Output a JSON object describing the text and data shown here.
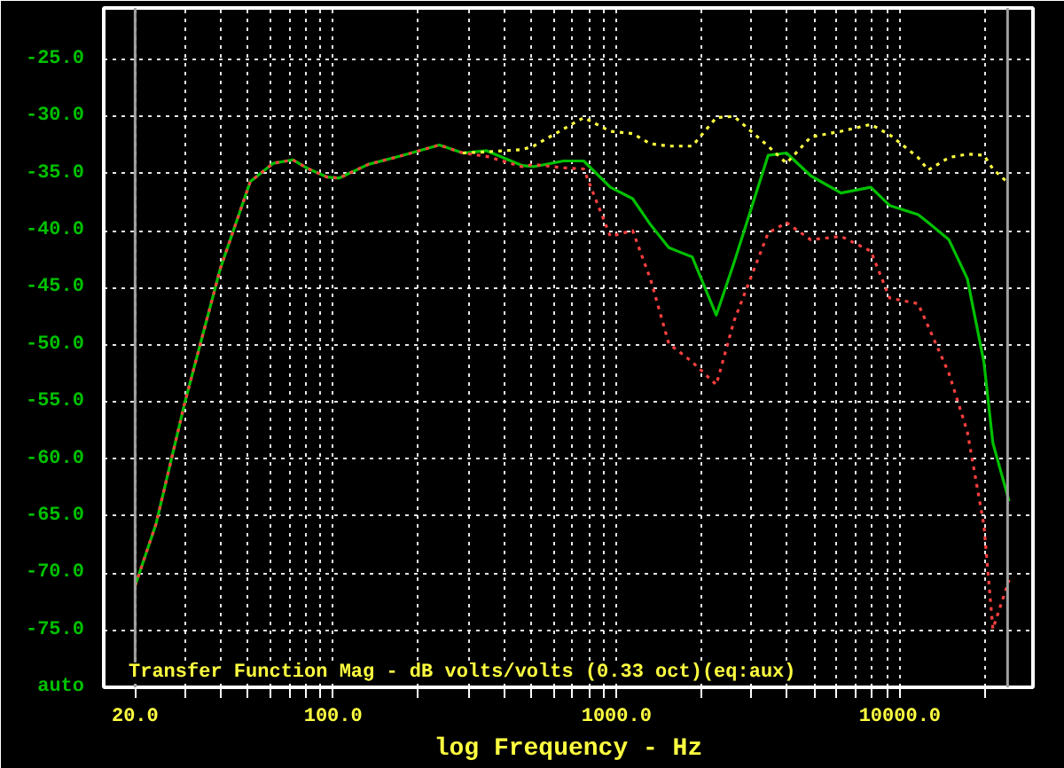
{
  "chart_data": {
    "type": "line",
    "xlabel": "log Frequency - Hz",
    "annotations": [
      "Transfer Function Mag - dB volts/volts (0.33 oct)(eq:aux)"
    ],
    "log": "x",
    "grid": true,
    "marker": "none",
    "xlim": [
      15.5,
      29500
    ],
    "ylim": [
      -80,
      -20.5
    ],
    "xticks": [
      {
        "value": 20,
        "label": "20.0"
      },
      {
        "value": 30,
        "label": null
      },
      {
        "value": 40,
        "label": null
      },
      {
        "value": 50,
        "label": null
      },
      {
        "value": 60,
        "label": null
      },
      {
        "value": 70,
        "label": null
      },
      {
        "value": 80,
        "label": null
      },
      {
        "value": 90,
        "label": null
      },
      {
        "value": 100,
        "label": "100.0"
      },
      {
        "value": 200,
        "label": null
      },
      {
        "value": 300,
        "label": null
      },
      {
        "value": 400,
        "label": null
      },
      {
        "value": 500,
        "label": null
      },
      {
        "value": 600,
        "label": null
      },
      {
        "value": 700,
        "label": null
      },
      {
        "value": 800,
        "label": null
      },
      {
        "value": 900,
        "label": null
      },
      {
        "value": 1000,
        "label": "1000.0"
      },
      {
        "value": 2000,
        "label": null
      },
      {
        "value": 3000,
        "label": null
      },
      {
        "value": 4000,
        "label": null
      },
      {
        "value": 5000,
        "label": null
      },
      {
        "value": 6000,
        "label": null
      },
      {
        "value": 7000,
        "label": null
      },
      {
        "value": 8000,
        "label": null
      },
      {
        "value": 9000,
        "label": null
      },
      {
        "value": 10000,
        "label": "10000.0"
      },
      {
        "value": 20000,
        "label": null
      }
    ],
    "yticks": [
      {
        "value": -25,
        "label": "-25.0"
      },
      {
        "value": -30,
        "label": "-30.0"
      },
      {
        "value": -35,
        "label": "-35.0"
      },
      {
        "value": -40,
        "label": "-40.0"
      },
      {
        "value": -45,
        "label": "-45.0"
      },
      {
        "value": -50,
        "label": "-50.0"
      },
      {
        "value": -55,
        "label": "-55.0"
      },
      {
        "value": -60,
        "label": "-60.0"
      },
      {
        "value": -65,
        "label": "-65.0"
      },
      {
        "value": -70,
        "label": "-70.0"
      },
      {
        "value": -75,
        "label": "-75.0"
      },
      {
        "value": -80,
        "label": "auto"
      }
    ],
    "ref_lines": [
      {
        "axis": "x",
        "value": 20,
        "color": "#a0a0a0"
      },
      {
        "axis": "x",
        "value": 24000,
        "color": "#a0a0a0"
      }
    ],
    "x": [
      20,
      23.7,
      30,
      40,
      51,
      61.5,
      72,
      82,
      95,
      105,
      133,
      177,
      237,
      287,
      348,
      465,
      509,
      650,
      766,
      951,
      1140,
      1320,
      1530,
      1850,
      2250,
      2600,
      3430,
      3980,
      4850,
      6200,
      7900,
      9200,
      11600,
      12600,
      14900,
      17300,
      19800,
      21300,
      24300
    ],
    "series": [
      {
        "color": "#00c000",
        "line_style": "solid",
        "values": [
          -71.1,
          -65.7,
          -55.0,
          -43.3,
          -35.7,
          -34.1,
          -33.8,
          -34.6,
          -35.3,
          -35.4,
          -34.2,
          -33.4,
          -32.5,
          -33.2,
          -33.0,
          -34.3,
          -34.4,
          -33.9,
          -33.9,
          -36.2,
          -37.2,
          -39.5,
          -41.5,
          -42.3,
          -47.4,
          -42.8,
          -33.4,
          -33.2,
          -35.2,
          -36.7,
          -36.2,
          -37.8,
          -38.6,
          -39.3,
          -40.8,
          -44.2,
          -51.5,
          -58.6,
          -63.7
        ]
      },
      {
        "color": "#ffff40",
        "line_style": "dotted",
        "values": [
          null,
          null,
          null,
          null,
          null,
          null,
          null,
          null,
          null,
          null,
          null,
          null,
          null,
          -33.2,
          -33.1,
          -32.9,
          -32.6,
          -31.1,
          -30.1,
          -31.3,
          -31.5,
          -32.4,
          -32.6,
          -32.6,
          -30.1,
          -30.0,
          -32.6,
          -34.1,
          -31.8,
          -31.3,
          -30.7,
          -31.6,
          -33.6,
          -34.7,
          -33.6,
          -33.3,
          -33.4,
          -34.6,
          -35.9
        ]
      },
      {
        "color": "#ff4040",
        "line_style": "dotted",
        "values": [
          -71.1,
          -65.7,
          -55.0,
          -43.3,
          -35.7,
          -34.1,
          -33.8,
          -34.6,
          -35.3,
          -35.4,
          -34.2,
          -33.4,
          -32.5,
          -33.2,
          -33.5,
          -34.4,
          -34.2,
          -34.5,
          -34.6,
          -40.5,
          -40.0,
          -44.3,
          -49.9,
          -51.5,
          -53.5,
          -47.9,
          -40.2,
          -39.3,
          -40.8,
          -40.5,
          -41.8,
          -45.9,
          -46.4,
          -48.4,
          -52.5,
          -57.6,
          -65.8,
          -74.9,
          -70.6
        ]
      }
    ]
  }
}
